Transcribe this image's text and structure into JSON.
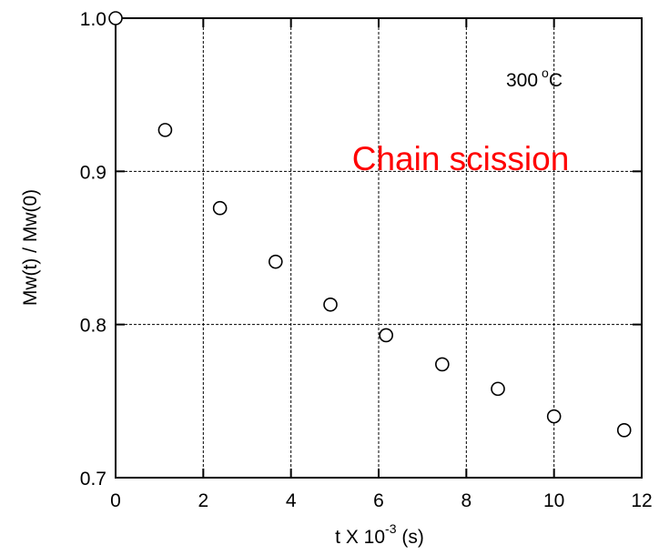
{
  "chart_data": {
    "type": "scatter",
    "title": "",
    "xlabel": "t  X  10",
    "xlabel_exponent": "-3",
    "xlabel_unit": " (s)",
    "ylabel": "Mw(t) / Mw(0)",
    "xlim": [
      0,
      12
    ],
    "ylim": [
      0.7,
      1.0
    ],
    "xticks": [
      0,
      2,
      4,
      6,
      8,
      10,
      12
    ],
    "xtick_labels": [
      "0",
      "2",
      "4",
      "6",
      "8",
      "10",
      "12"
    ],
    "yticks": [
      0.7,
      0.8,
      0.9,
      1.0
    ],
    "ytick_labels": [
      "0.7",
      "0.8",
      "0.9",
      "1.0"
    ],
    "grid": true,
    "series": [
      {
        "x": [
          0,
          1.13,
          2.38,
          3.65,
          4.9,
          6.17,
          7.45,
          8.72,
          10.0,
          11.6
        ],
        "y": [
          1.0,
          0.927,
          0.876,
          0.841,
          0.813,
          0.793,
          0.774,
          0.758,
          0.74,
          0.731
        ]
      }
    ],
    "annotations": {
      "temperature": "300",
      "temperature_sup": "o",
      "temperature_unit": "C",
      "label": "Chain scission"
    }
  }
}
